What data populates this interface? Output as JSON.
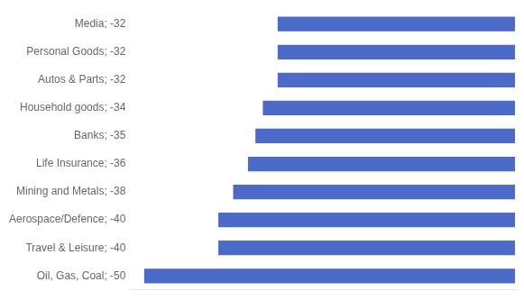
{
  "chart_data": {
    "type": "bar",
    "orientation": "horizontal",
    "categories": [
      "Oil, Gas, Coal; -50",
      "Travel & Leisure; -40",
      "Aerospace/Defence; -40",
      "Mining and Metals; -38",
      "Life Insurance; -36",
      "Banks; -35",
      "Household goods; -34",
      "Autos & Parts; -32",
      "Personal Goods; -32",
      "Media; -32"
    ],
    "values": [
      -50,
      -40,
      -40,
      -38,
      -36,
      -35,
      -34,
      -32,
      -32,
      -32
    ],
    "color": "#4C6BC9",
    "xlim": [
      -52,
      0
    ],
    "grid": false,
    "tick_labels": "y"
  }
}
